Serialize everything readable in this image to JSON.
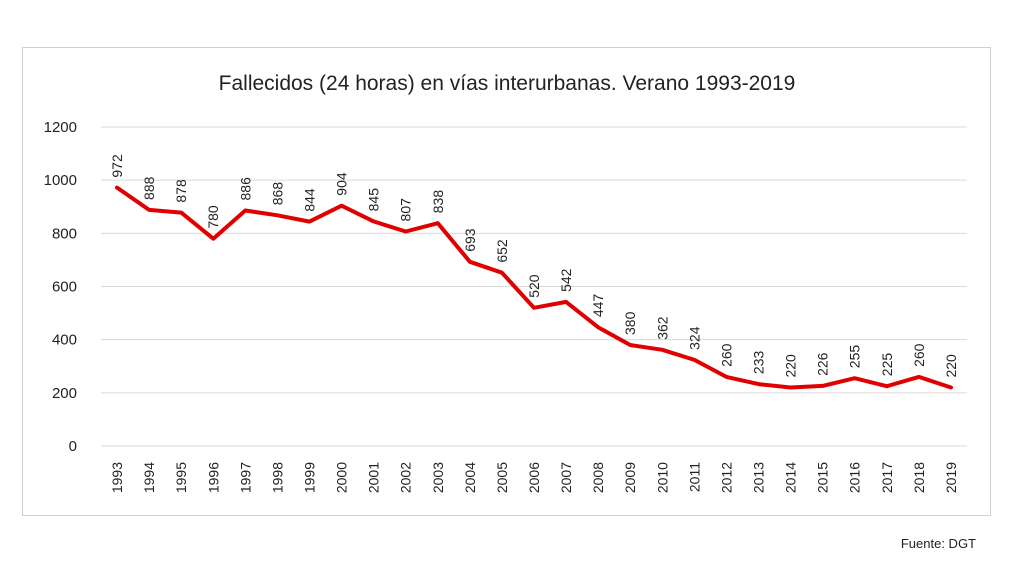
{
  "source_note": "Fuente: DGT",
  "chart_data": {
    "type": "line",
    "title": "Fallecidos (24 horas) en vías interurbanas. Verano 1993-2019",
    "xlabel": "",
    "ylabel": "",
    "categories": [
      "1993",
      "1994",
      "1995",
      "1996",
      "1997",
      "1998",
      "1999",
      "2000",
      "2001",
      "2002",
      "2003",
      "2004",
      "2005",
      "2006",
      "2007",
      "2008",
      "2009",
      "2010",
      "2011",
      "2012",
      "2013",
      "2014",
      "2015",
      "2016",
      "2017",
      "2018",
      "2019"
    ],
    "series": [
      {
        "color": "#e00000",
        "values": [
          972,
          888,
          878,
          780,
          886,
          868,
          844,
          904,
          845,
          807,
          838,
          693,
          652,
          520,
          542,
          447,
          380,
          362,
          324,
          260,
          233,
          220,
          226,
          255,
          225,
          260,
          220
        ]
      }
    ],
    "ylim": [
      0,
      1200
    ],
    "yticks": [
      0,
      200,
      400,
      600,
      800,
      1000,
      1200
    ],
    "grid": "horizontal",
    "legend": "none",
    "data_labels": true,
    "colors": {
      "line": "#e00000",
      "grid": "#d9d9d9",
      "text": "#222222"
    }
  }
}
